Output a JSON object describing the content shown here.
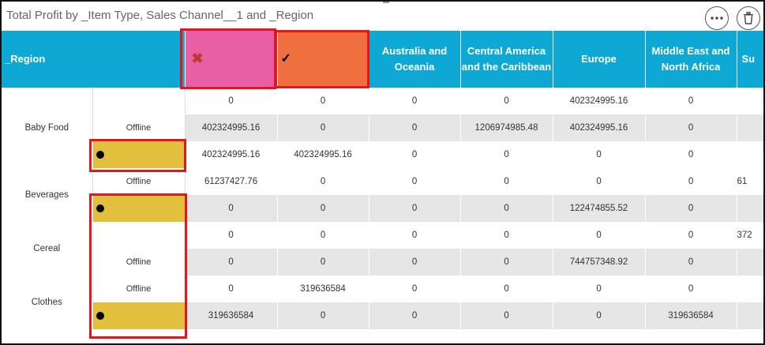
{
  "title": "Total Profit by _Item Type, Sales Channel__1 and _Region",
  "toolbar": {
    "more_icon": "more-icon",
    "delete_icon": "trash-icon"
  },
  "header": {
    "region_label": "_Region",
    "x_label": "✖",
    "check_label": "✓",
    "columns": [
      "Australia and Oceania",
      "Central America and the Caribbean",
      "Europe",
      "Middle East and North Africa",
      "Su"
    ]
  },
  "rows": [
    {
      "item": "",
      "channel": "",
      "yellow": false,
      "shade": false,
      "values": [
        "0",
        "0",
        "0",
        "0",
        "402324995.16",
        "0",
        ""
      ]
    },
    {
      "item": "Baby Food",
      "channel": "Offline",
      "yellow": false,
      "shade": true,
      "values": [
        "402324995.16",
        "0",
        "0",
        "1206974985.48",
        "402324995.16",
        "0",
        ""
      ]
    },
    {
      "item": "",
      "channel": "",
      "yellow": true,
      "shade": false,
      "values": [
        "402324995.16",
        "402324995.16",
        "0",
        "0",
        "0",
        "0",
        ""
      ]
    },
    {
      "item": "",
      "channel": "Offline",
      "yellow": false,
      "shade": false,
      "values": [
        "61237427.76",
        "0",
        "0",
        "0",
        "0",
        "0",
        "61"
      ]
    },
    {
      "item": "Beverages",
      "channel": "",
      "yellow": true,
      "shade": true,
      "values": [
        "0",
        "0",
        "0",
        "0",
        "122474855.52",
        "0",
        ""
      ]
    },
    {
      "item": "",
      "channel": "",
      "yellow": false,
      "shade": false,
      "values": [
        "0",
        "0",
        "0",
        "0",
        "0",
        "0",
        "372"
      ]
    },
    {
      "item": "Cereal",
      "channel": "Offline",
      "yellow": false,
      "shade": true,
      "values": [
        "0",
        "0",
        "0",
        "0",
        "744757348.92",
        "0",
        ""
      ]
    },
    {
      "item": "",
      "channel": "Offline",
      "yellow": false,
      "shade": false,
      "values": [
        "0",
        "319636584",
        "0",
        "0",
        "0",
        "0",
        ""
      ]
    },
    {
      "item": "Clothes",
      "channel": "",
      "yellow": true,
      "shade": true,
      "values": [
        "319636584",
        "0",
        "0",
        "0",
        "0",
        "319636584",
        ""
      ]
    }
  ]
}
